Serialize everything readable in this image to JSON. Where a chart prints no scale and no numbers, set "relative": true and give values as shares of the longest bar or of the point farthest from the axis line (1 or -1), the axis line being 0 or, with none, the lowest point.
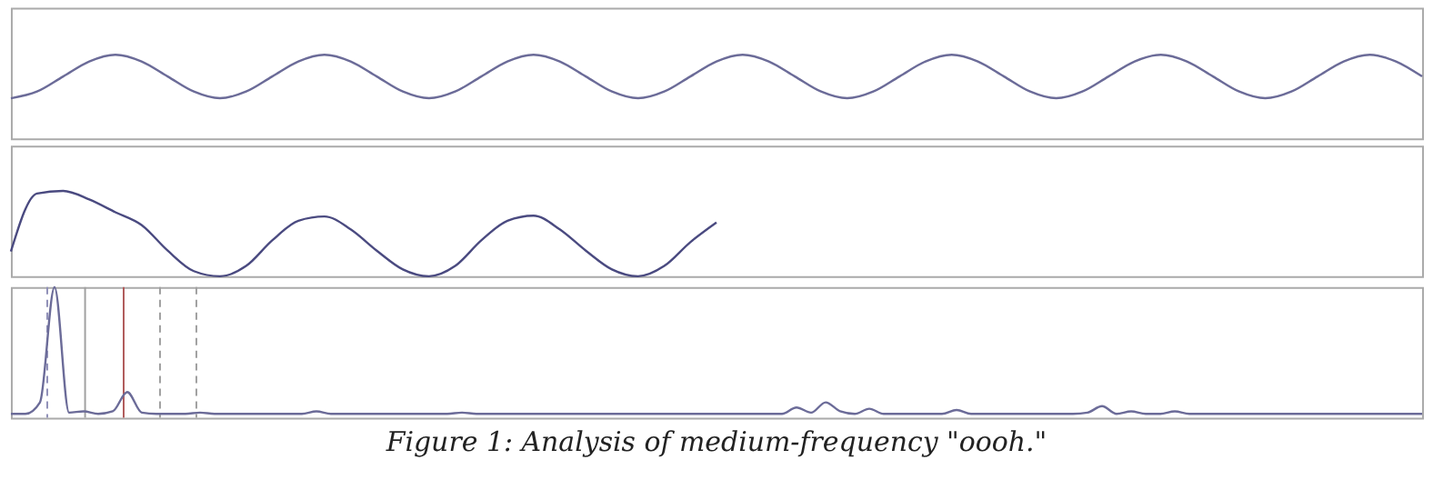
{
  "chart_data": [
    {
      "type": "line",
      "relative": true,
      "grid": false,
      "legend": false,
      "marker": "none",
      "line_style": "solid",
      "tick_labels": false,
      "categories": [
        null,
        null,
        null,
        null,
        null,
        null,
        null,
        null,
        null,
        null,
        null,
        null,
        null,
        null,
        null,
        null,
        null,
        null,
        null,
        null,
        null,
        null,
        null,
        null,
        null,
        null,
        null,
        null,
        null,
        null,
        null,
        null,
        null,
        null,
        null,
        null,
        null,
        null,
        null,
        null,
        null,
        null,
        null,
        null,
        null,
        null,
        null,
        null,
        null,
        null,
        null,
        null,
        null,
        null,
        null
      ],
      "series": [
        {
          "color": "#6b6b98",
          "values": [
            0.48,
            0.56,
            0.74,
            0.92,
            1,
            0.92,
            0.74,
            0.56,
            0.48,
            0.56,
            0.74,
            0.92,
            1,
            0.92,
            0.74,
            0.56,
            0.48,
            0.56,
            0.74,
            0.92,
            1,
            0.92,
            0.74,
            0.56,
            0.48,
            0.56,
            0.74,
            0.92,
            1,
            0.92,
            0.74,
            0.56,
            0.48,
            0.56,
            0.74,
            0.92,
            1,
            0.92,
            0.74,
            0.56,
            0.48,
            0.56,
            0.74,
            0.92,
            1,
            0.92,
            0.74,
            0.56,
            0.48,
            0.56,
            0.74,
            0.92,
            1,
            0.92,
            0.74
          ]
        }
      ]
    },
    {
      "type": "line",
      "relative": true,
      "grid": false,
      "legend": false,
      "marker": "none",
      "line_style": "solid",
      "tick_labels": false,
      "categories": [
        null,
        null,
        null,
        null,
        null,
        null,
        null,
        null,
        null,
        null,
        null,
        null,
        null,
        null,
        null,
        null,
        null,
        null,
        null,
        null,
        null,
        null,
        null,
        null,
        null,
        null,
        null,
        null,
        null,
        null,
        null,
        null,
        null,
        null,
        null,
        null,
        null,
        null,
        null,
        null,
        null,
        null,
        null,
        null,
        null,
        null,
        null,
        null,
        null,
        null,
        null,
        null,
        null,
        null,
        null
      ],
      "series": [
        {
          "color": "#4a4a80",
          "values": [
            0.29,
            0.97,
            1.0,
            0.9,
            0.75,
            0.6,
            0.3,
            0.06,
            0,
            0.12,
            0.42,
            0.65,
            0.7,
            0.55,
            0.3,
            0.08,
            0,
            0.12,
            0.42,
            0.65,
            0.71,
            0.55,
            0.3,
            0.08,
            0,
            0.12,
            0.4,
            0.63,
            null,
            null,
            null,
            null,
            null,
            null,
            null,
            null,
            null,
            null,
            null,
            null,
            null,
            null,
            null,
            null,
            null,
            null,
            null,
            null,
            null,
            null,
            null,
            null,
            null,
            null,
            null
          ]
        }
      ]
    },
    {
      "type": "line",
      "relative": true,
      "grid": false,
      "legend": false,
      "marker": "none",
      "line_style": "solid",
      "tick_labels": false,
      "categories": [
        null,
        null,
        null,
        null,
        null,
        null,
        null,
        null,
        null,
        null,
        null,
        null,
        null,
        null,
        null,
        null,
        null,
        null,
        null,
        null,
        null,
        null,
        null,
        null,
        null,
        null,
        null,
        null,
        null,
        null,
        null,
        null,
        null,
        null,
        null,
        null,
        null,
        null,
        null,
        null,
        null,
        null,
        null,
        null,
        null,
        null,
        null,
        null,
        null,
        null,
        null,
        null,
        null,
        null,
        null,
        null,
        null,
        null,
        null,
        null,
        null,
        null,
        null,
        null,
        null,
        null,
        null,
        null,
        null,
        null,
        null,
        null,
        null,
        null,
        null,
        null,
        null,
        null,
        null,
        null,
        null,
        null,
        null,
        null,
        null,
        null,
        null,
        null,
        null,
        null,
        null,
        null,
        null,
        null,
        null,
        null,
        null,
        null
      ],
      "series": [
        {
          "color": "#6b6b98",
          "values": [
            0.01,
            0.01,
            0.1,
            1.0,
            0.02,
            0.03,
            0.01,
            0.03,
            0.18,
            0.02,
            0.01,
            0.01,
            0.01,
            0.02,
            0.01,
            0.01,
            0.01,
            0.01,
            0.01,
            0.01,
            0.01,
            0.03,
            0.01,
            0.01,
            0.01,
            0.01,
            0.01,
            0.01,
            0.01,
            0.01,
            0.01,
            0.02,
            0.01,
            0.01,
            0.01,
            0.01,
            0.01,
            0.01,
            0.01,
            0.01,
            0.01,
            0.01,
            0.01,
            0.01,
            0.01,
            0.01,
            0.01,
            0.01,
            0.01,
            0.01,
            0.01,
            0.01,
            0.01,
            0.01,
            0.06,
            0.02,
            0.1,
            0.03,
            0.01,
            0.05,
            0.01,
            0.01,
            0.01,
            0.01,
            0.01,
            0.04,
            0.01,
            0.01,
            0.01,
            0.01,
            0.01,
            0.01,
            0.01,
            0.01,
            0.02,
            0.07,
            0.01,
            0.03,
            0.01,
            0.01,
            0.03,
            0.01,
            0.01,
            0.01,
            0.01,
            0.01,
            0.01,
            0.01,
            0.01,
            0.01,
            0.01,
            0.01,
            0.01,
            0.01,
            0.01,
            0.01,
            0.01,
            0.01
          ]
        }
      ],
      "annotations": [
        "Figure 1:  Analysis of medium-frequency \"oooh.\""
      ]
    }
  ]
}
